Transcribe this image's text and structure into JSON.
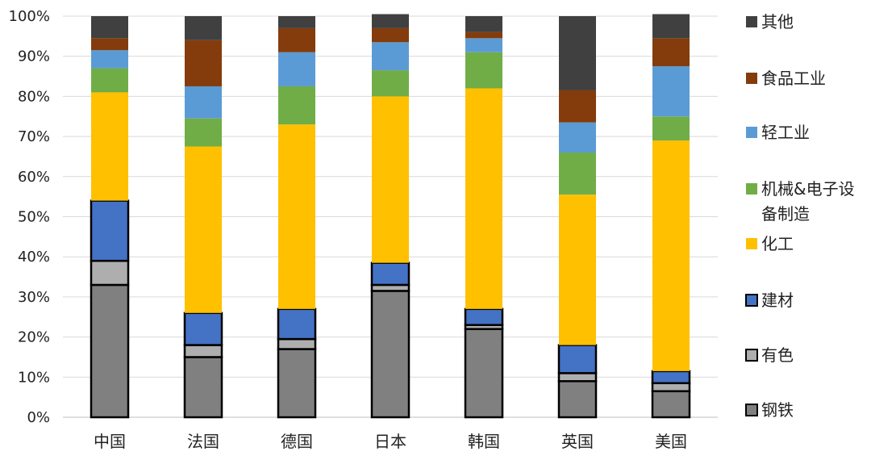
{
  "chart_data": {
    "type": "bar",
    "stacked": true,
    "percent": true,
    "categories": [
      "中国",
      "法国",
      "德国",
      "日本",
      "韩国",
      "英国",
      "美国"
    ],
    "ylim": [
      0,
      100
    ],
    "yticks": [
      "0%",
      "10%",
      "20%",
      "30%",
      "40%",
      "50%",
      "60%",
      "70%",
      "80%",
      "90%",
      "100%"
    ],
    "grid": true,
    "legend_position": "right",
    "series": [
      {
        "name": "钢铁",
        "color": "#808080",
        "outlined": true,
        "values": [
          33,
          15,
          17,
          31.5,
          22,
          9,
          6.5
        ]
      },
      {
        "name": "有色",
        "color": "#AEAEAE",
        "outlined": true,
        "values": [
          6,
          3,
          2.5,
          1.5,
          1,
          2,
          2
        ]
      },
      {
        "name": "建材",
        "color": "#4472C4",
        "outlined": true,
        "values": [
          15,
          8,
          7.5,
          5.5,
          4,
          7,
          3
        ]
      },
      {
        "name": "化工",
        "color": "#FFC000",
        "outlined": false,
        "values": [
          27,
          41.5,
          46,
          41.5,
          55,
          37.5,
          57.5
        ]
      },
      {
        "name": "机械&电子设备制造",
        "color": "#70AD47",
        "outlined": false,
        "values": [
          6,
          7,
          9.5,
          6.5,
          9,
          10.5,
          6
        ]
      },
      {
        "name": "轻工业",
        "color": "#5B9BD5",
        "outlined": false,
        "values": [
          4.5,
          8,
          8.5,
          7,
          3.5,
          7.5,
          12.5
        ]
      },
      {
        "name": "食品工业",
        "color": "#843C0C",
        "outlined": false,
        "values": [
          3,
          11.5,
          6,
          3.5,
          1.5,
          8,
          7
        ]
      },
      {
        "name": "其他",
        "color": "#404040",
        "outlined": false,
        "values": [
          5.5,
          6,
          3,
          3.5,
          4,
          18.5,
          6
        ]
      }
    ],
    "legend_lines": [
      [
        "其他"
      ],
      [
        "食品工业"
      ],
      [
        "轻工业"
      ],
      [
        "机械&电子设",
        "备制造"
      ],
      [
        "化工"
      ],
      [
        "建材"
      ],
      [
        "有色"
      ],
      [
        "钢铁"
      ]
    ]
  }
}
